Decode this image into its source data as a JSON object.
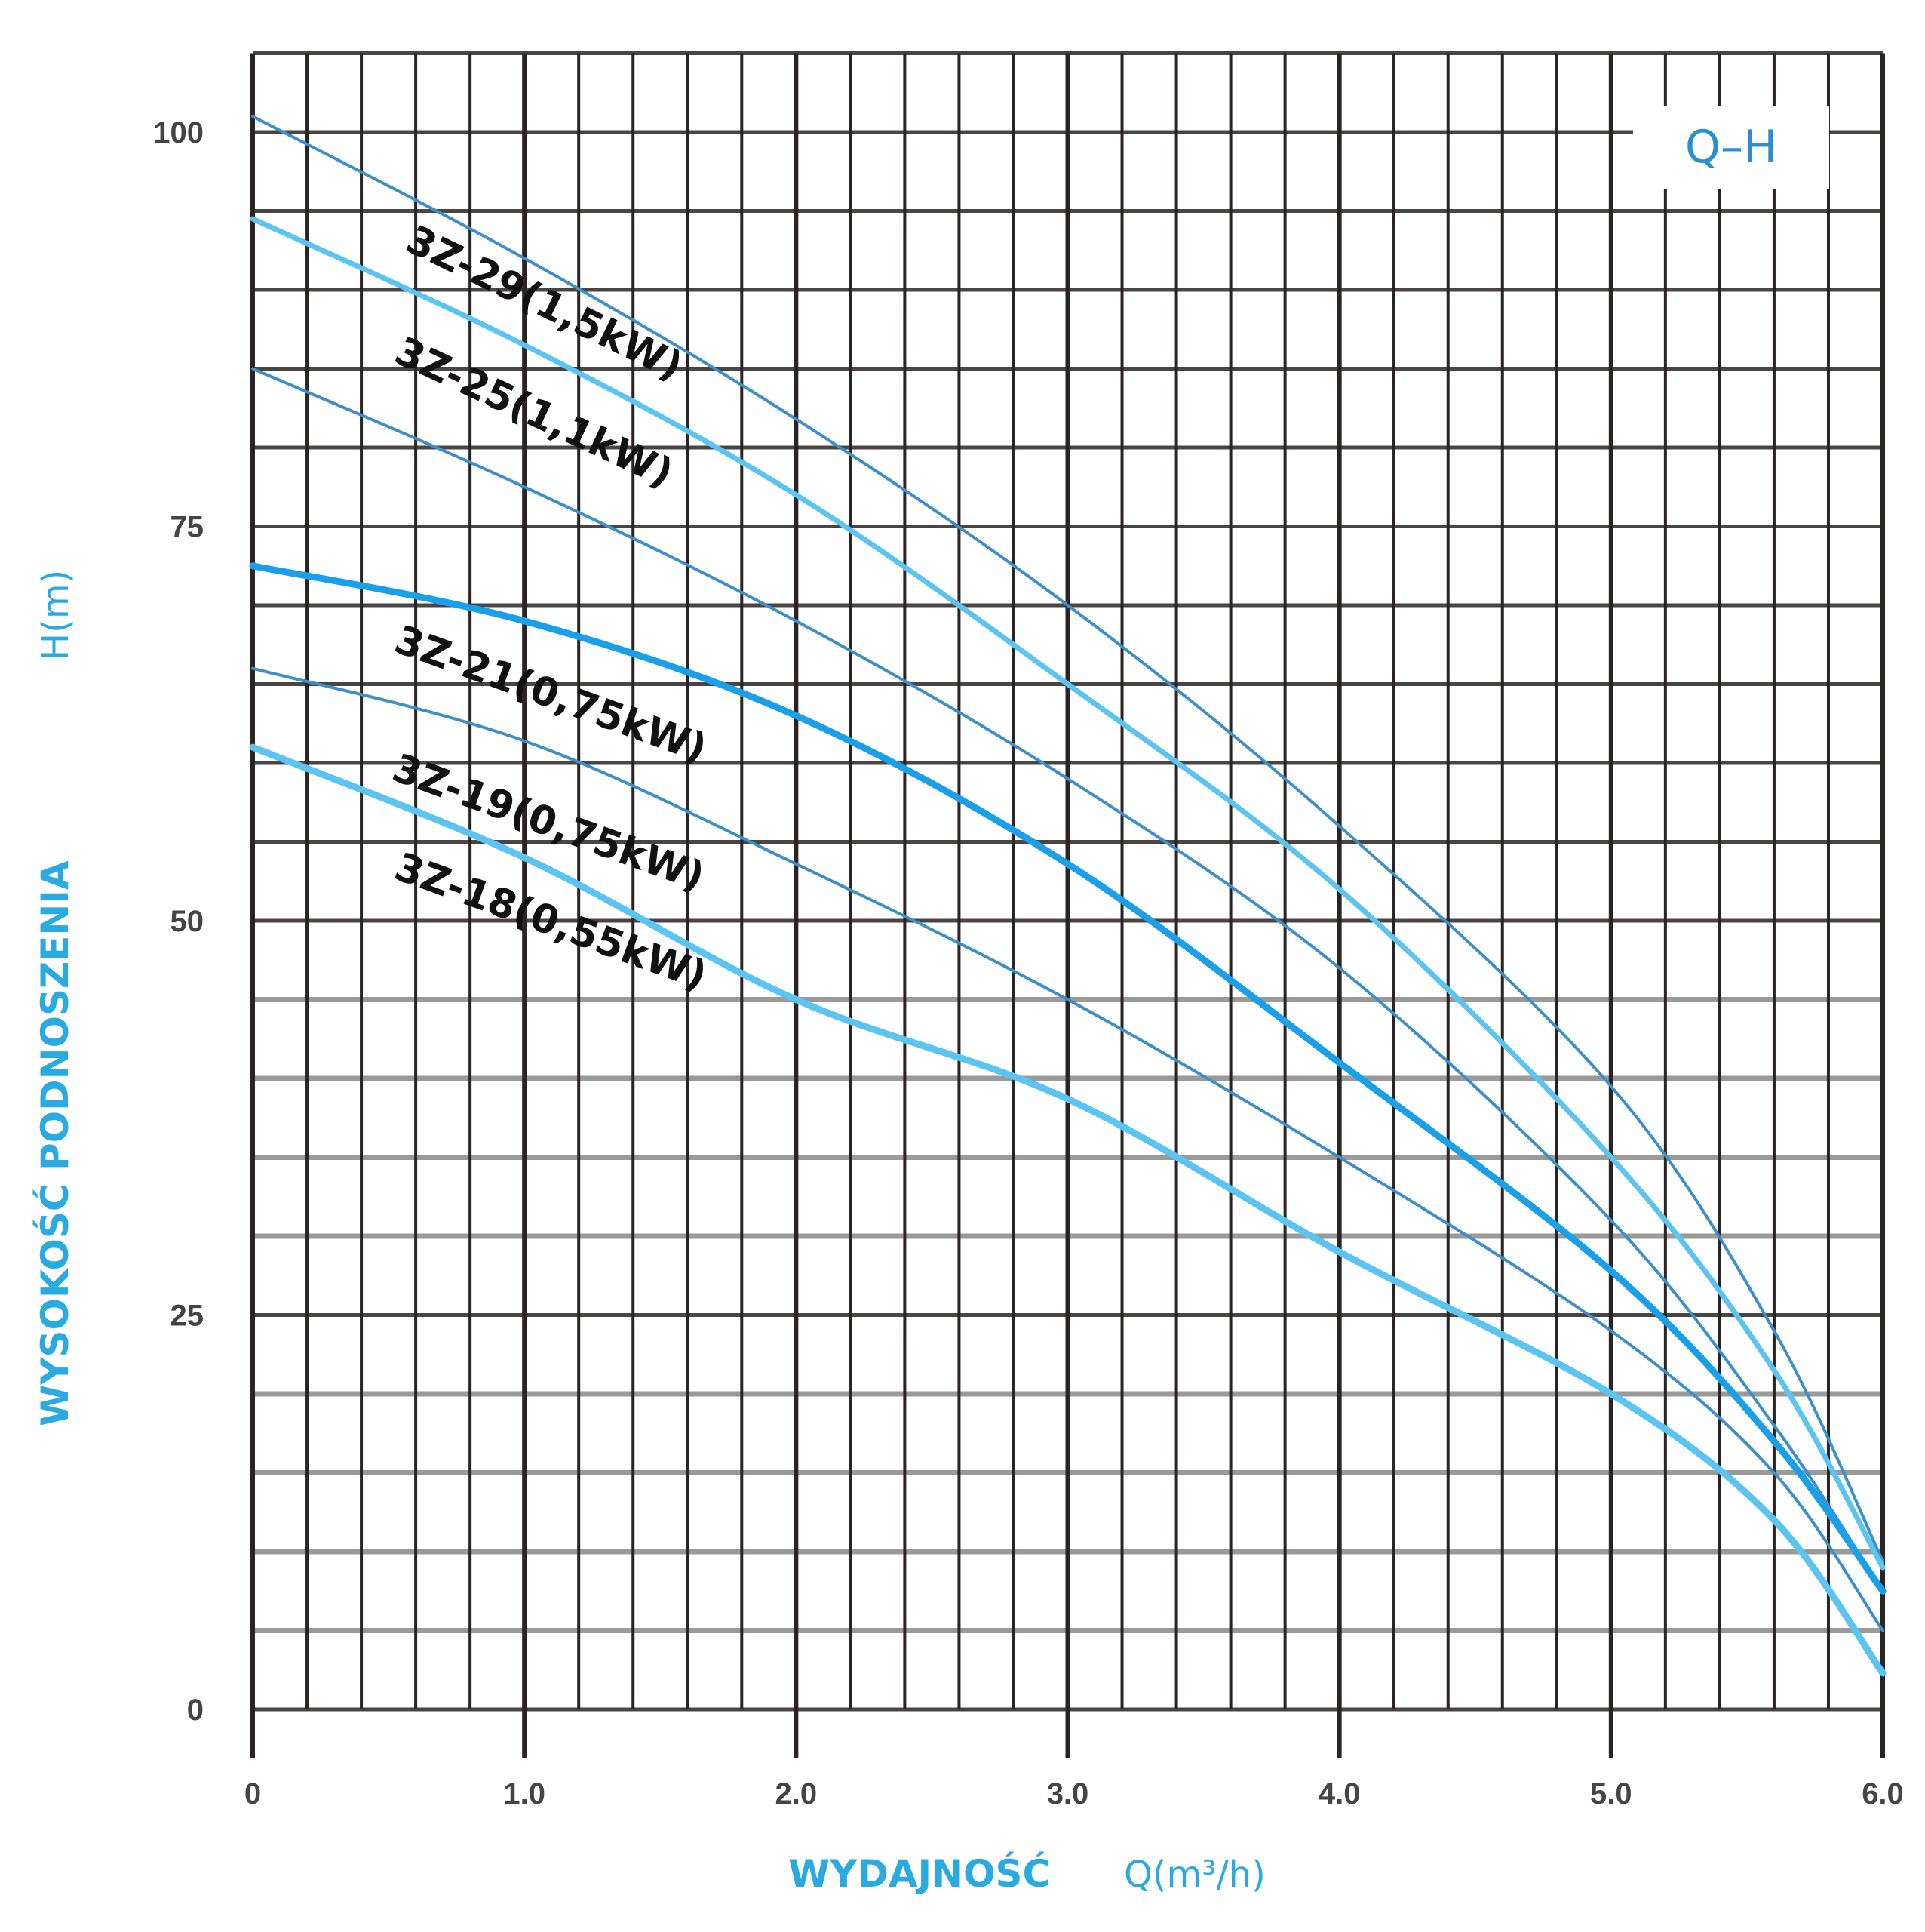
{
  "chart_data": {
    "type": "line",
    "title": "Q–H",
    "xlabel": "WYDAJNOŚĆ",
    "xunit": "Q(m³/h)",
    "ylabel": "WYSOKOŚĆ PODNOSZENIA",
    "yunit": "H(m)",
    "xlim": [
      0,
      6
    ],
    "ylim": [
      0,
      105
    ],
    "x_ticks": [
      "0",
      "1.0",
      "2.0",
      "3.0",
      "4.0",
      "5.0",
      "6.0"
    ],
    "y_ticks": [
      "0",
      "25",
      "50",
      "75",
      "100"
    ],
    "grid": true,
    "x": [
      0,
      1.0,
      2.0,
      3.0,
      4.0,
      5.0,
      5.6,
      6.0
    ],
    "series": [
      {
        "values": [
          101,
          92,
          81.8,
          70,
          56,
          39.5,
          24,
          9.4
        ],
        "color": "#3d8fc9",
        "style": "thin"
      },
      {
        "values": [
          94.5,
          86.5,
          77,
          65,
          52,
          35,
          21.5,
          9
        ],
        "color": "#5bc4f0",
        "style": "medium"
      },
      {
        "values": [
          85,
          77.5,
          69,
          59,
          47,
          31,
          18,
          7.5
        ],
        "color": "#3d8fc9",
        "style": "thin"
      },
      {
        "values": [
          72.5,
          69,
          63,
          53.6,
          41,
          27.8,
          17,
          7.5
        ],
        "color": "#1aa0e8",
        "style": "bold"
      },
      {
        "values": [
          66,
          61.4,
          53.6,
          45,
          35,
          24,
          15,
          5
        ],
        "color": "#3d8fc9",
        "style": "thin"
      },
      {
        "values": [
          61,
          54,
          45,
          38.7,
          29,
          20,
          12,
          2.3
        ],
        "color": "#5bc4f0",
        "style": "bold"
      }
    ],
    "annotations": [
      {
        "text": "3Z-29(1,5kW)"
      },
      {
        "text": "3Z-25(1,1kW)"
      },
      {
        "text": "3Z-21(0,75kW)"
      },
      {
        "text": "3Z-19(0,75kW)"
      },
      {
        "text": "3Z-18(0,55kW)"
      }
    ]
  }
}
